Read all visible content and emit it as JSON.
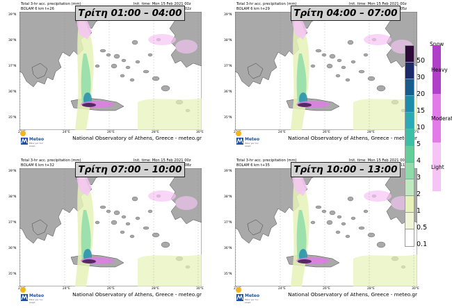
{
  "panels": [
    {
      "title_line1": "Total 3-hr acc. precipitation (mm)",
      "title_line2": "BOLAM 6 km t+26",
      "init": "Init. time: Mon 15 Feb 2021 00z",
      "valid": "Valid time: Tue 16 Feb 2021 02z",
      "period": "Τρίτη 01:00 – 04:00"
    },
    {
      "title_line1": "Total 3-hr acc. precipitation (mm)",
      "title_line2": "BOLAM 6 km t+29",
      "init": "Init. time: Mon 15 Feb 2021 00z",
      "valid": "Valid time: Tue 16 Feb 2021 05z",
      "period": "Τρίτη 04:00 – 07:00"
    },
    {
      "title_line1": "Total 3-hr acc. precipitation (mm)",
      "title_line2": "BOLAM 6 km t+32",
      "init": "Init. time: Mon 15 Feb 2021 00z",
      "valid": "Valid time: Tue 16 Feb 2021 08z",
      "period": "Τρίτη 07:00 – 10:00"
    },
    {
      "title_line1": "Total 3-hr acc. precipitation (mm)",
      "title_line2": "BOLAM 6 km t+35",
      "init": "Init. time: Mon 15 Feb 2021 00z",
      "valid": "Valid time: Tue 16 Feb 2021 11z",
      "period": "Τρίτη 10:00 – 13:00"
    }
  ],
  "footer": "National Observatory of Athens, Greece - meteo.gr",
  "logo": {
    "name": "Meteo",
    "tagline": "Μένε για τον καιρό"
  },
  "lat_labels": [
    "39°N",
    "38°N",
    "37°N",
    "36°N",
    "35°N"
  ],
  "lon_labels": [
    "22°E",
    "24°E",
    "26°E",
    "28°E",
    "30°E"
  ],
  "legend": {
    "ticks": [
      "50",
      "30",
      "20",
      "15",
      "10",
      "5",
      "4",
      "3",
      "2",
      "1",
      "0.5",
      "0.1"
    ],
    "colors": [
      "#2e0a3a",
      "#1c2a6a",
      "#175c8e",
      "#1d8bac",
      "#2aa9b6",
      "#3cbfa6",
      "#63cf98",
      "#8edcaa",
      "#bfeac0",
      "#e6f2b8",
      "#f1f7d6",
      "#ffffff"
    ],
    "snow_title": "Snow",
    "snow_levels": [
      {
        "label": "Heavy",
        "color": "#b040c8"
      },
      {
        "label": "Moderate",
        "color": "#e27ae8"
      },
      {
        "label": "Light",
        "color": "#f6c4f4"
      }
    ]
  },
  "colors": {
    "land": "#a9a9a9",
    "sea": "#ffffff",
    "grid": "#888888"
  }
}
